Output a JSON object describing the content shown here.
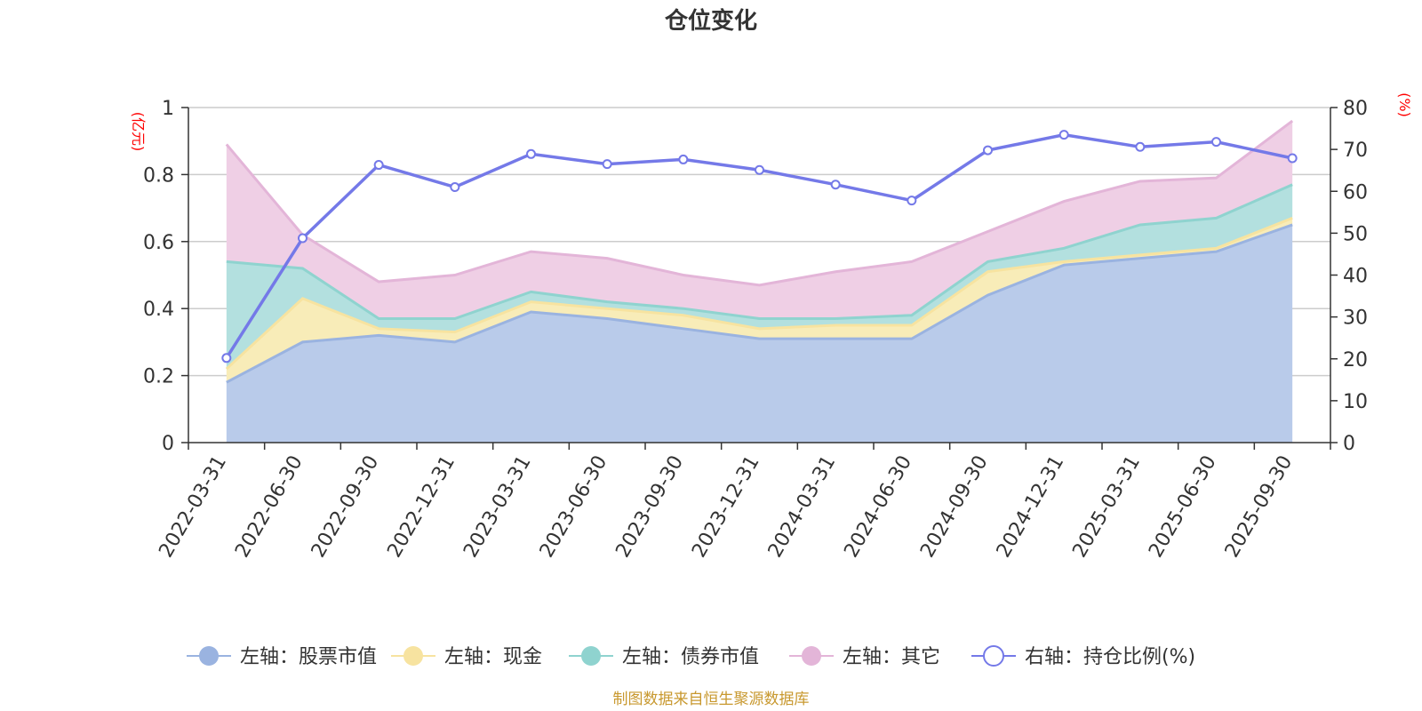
{
  "chart_data": {
    "type": "area",
    "title": "仓位变化",
    "categories": [
      "2022-03-31",
      "2022-06-30",
      "2022-09-30",
      "2022-12-31",
      "2023-03-31",
      "2023-06-30",
      "2023-09-30",
      "2023-12-31",
      "2024-03-31",
      "2024-06-30",
      "2024-09-30",
      "2024-12-31",
      "2025-03-31",
      "2025-06-30",
      "2025-09-30"
    ],
    "left_axis": {
      "unit": "(亿元)",
      "ylim": [
        0,
        1
      ],
      "ticks": [
        "0",
        "0.2",
        "0.4",
        "0.6",
        "0.8",
        "1"
      ]
    },
    "right_axis": {
      "unit": "(%)",
      "ylim": [
        0,
        80
      ],
      "ticks": [
        "0",
        "10",
        "20",
        "30",
        "40",
        "50",
        "60",
        "70",
        "80"
      ]
    },
    "stacked_series": [
      {
        "name": "左轴：股票市值",
        "color": "#9ab3e0",
        "fill": "#b9cbea",
        "values": [
          0.18,
          0.3,
          0.32,
          0.3,
          0.39,
          0.37,
          0.34,
          0.31,
          0.31,
          0.31,
          0.44,
          0.53,
          0.55,
          0.57,
          0.65
        ]
      },
      {
        "name": "左轴：现金",
        "color": "#f7e3a0",
        "fill": "#f8ecb8",
        "values": [
          0.04,
          0.13,
          0.02,
          0.03,
          0.03,
          0.03,
          0.04,
          0.03,
          0.04,
          0.04,
          0.07,
          0.01,
          0.01,
          0.01,
          0.02
        ]
      },
      {
        "name": "左轴：债券市值",
        "color": "#8fd3cf",
        "fill": "#b3e0df",
        "values": [
          0.32,
          0.09,
          0.03,
          0.04,
          0.03,
          0.02,
          0.02,
          0.03,
          0.02,
          0.03,
          0.03,
          0.04,
          0.09,
          0.09,
          0.1
        ]
      },
      {
        "name": "左轴：其它",
        "color": "#e3b5d8",
        "fill": "#efcfe5",
        "values": [
          0.35,
          0.1,
          0.11,
          0.13,
          0.12,
          0.13,
          0.1,
          0.1,
          0.14,
          0.16,
          0.09,
          0.14,
          0.13,
          0.12,
          0.19
        ]
      }
    ],
    "line_series": {
      "name": "右轴：持仓比例(%)",
      "color": "#7479e8",
      "values": [
        20.2,
        48.8,
        66.3,
        61.0,
        68.9,
        66.5,
        67.6,
        65.1,
        61.6,
        57.8,
        69.8,
        73.5,
        70.6,
        71.8,
        67.9
      ]
    },
    "source_text": "制图数据来自恒生聚源数据库"
  }
}
